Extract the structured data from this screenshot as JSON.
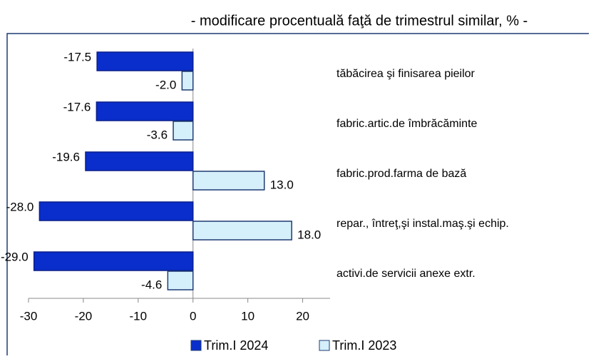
{
  "chart_data": {
    "type": "bar",
    "orientation": "horizontal",
    "title": "- modificare procentuală faţă de trimestrul similar, % -",
    "categories": [
      "tăbăcirea şi finisarea pieilor",
      "fabric.artic.de îmbrăcăminte",
      "fabric.prod.farma de bază",
      "repar., întreţ,şi instal.maş.şi echip.",
      "activi.de servicii anexe extr."
    ],
    "series": [
      {
        "name": "Trim.I 2024",
        "color": "#0a2ecb",
        "values": [
          -17.5,
          -17.6,
          -19.6,
          -28.0,
          -29.0
        ],
        "value_labels": [
          "-17.5",
          "-17.6",
          "-19.6",
          "-28.0",
          "-29.0"
        ]
      },
      {
        "name": "Trim.I 2023",
        "color": "#d6f0fb",
        "values": [
          -2.0,
          -3.6,
          13.0,
          18.0,
          -4.6
        ],
        "value_labels": [
          "-2.0",
          "-3.6",
          "13.0",
          "18.0",
          "-4.6"
        ]
      }
    ],
    "xlim": [
      -30,
      25
    ],
    "xticks": [
      -30,
      -20,
      -10,
      0,
      10,
      20
    ],
    "legend": "bottom"
  }
}
